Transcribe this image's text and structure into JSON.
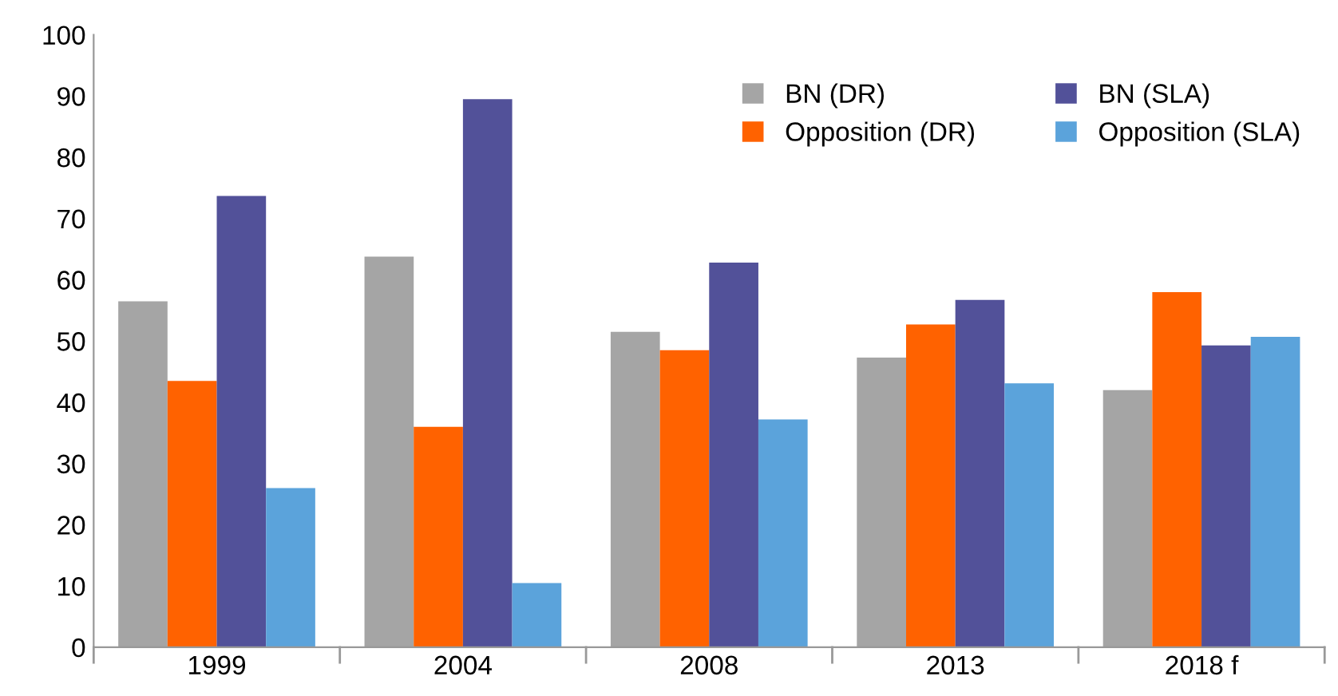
{
  "chart_data": {
    "type": "bar",
    "categories": [
      "1999",
      "2004",
      "2008",
      "2013",
      "2018 f"
    ],
    "series": [
      {
        "name": "BN (DR)",
        "color": "#a5a5a5",
        "values": [
          56.5,
          63.8,
          51.5,
          47.3,
          42
        ]
      },
      {
        "name": "Opposition (DR)",
        "color": "#ff6200",
        "values": [
          43.5,
          36,
          48.5,
          52.7,
          58
        ]
      },
      {
        "name": "BN (SLA)",
        "color": "#525199",
        "values": [
          73.7,
          89.5,
          62.8,
          56.7,
          49.3
        ]
      },
      {
        "name": "Opposition (SLA)",
        "color": "#5ba3db",
        "values": [
          26,
          10.5,
          37.2,
          43.1,
          50.7
        ]
      }
    ],
    "ylim": [
      0,
      100
    ],
    "yticks": [
      0,
      10,
      20,
      30,
      40,
      50,
      60,
      70,
      80,
      90,
      100
    ],
    "grid": false,
    "legend": "top right"
  }
}
